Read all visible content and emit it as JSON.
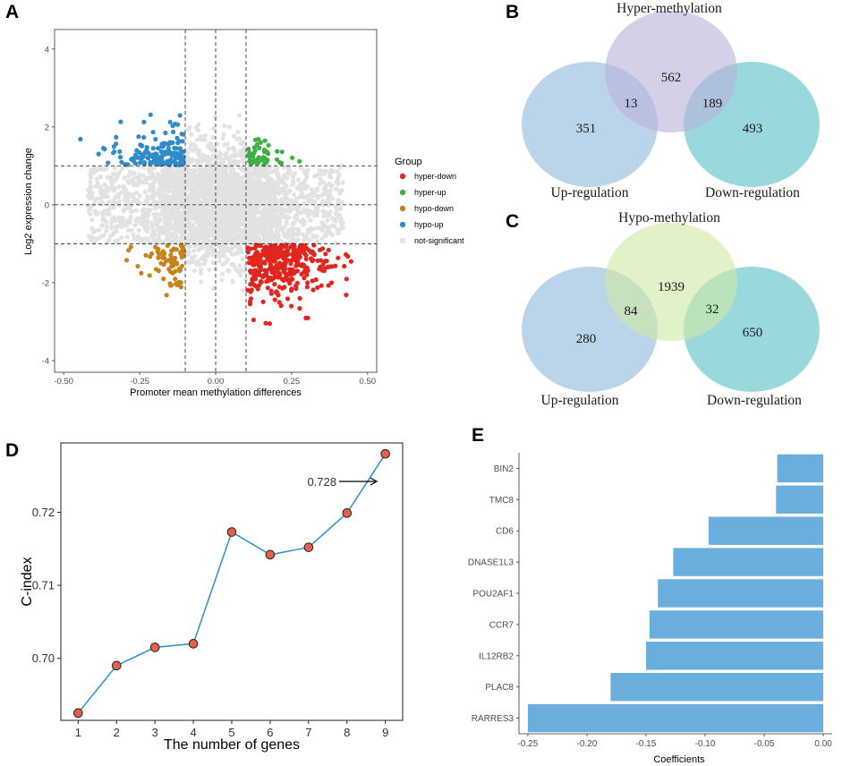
{
  "panels": {
    "a": "A",
    "b": "B",
    "c": "C",
    "d": "D",
    "e": "E"
  },
  "colors": {
    "hyper_down": "#e0261f",
    "hyper_up": "#3cb043",
    "hypo_down": "#c9821b",
    "hypo_up": "#2f8bc9",
    "not_significant": "#e2e2e2",
    "venn_hyper": "#b9b3d9",
    "venn_up": "#a9c9e3",
    "venn_down": "#7fd0d3",
    "venn_hypo": "#cfe8a6",
    "line": "#2c8fc7",
    "point": "#e4604a",
    "bar": "#6aaedd"
  },
  "chart_data": [
    {
      "id": "A",
      "type": "scatter",
      "xlabel": "Promoter mean methylation differences",
      "ylabel": "Log2 expression change",
      "xlim": [
        -0.53,
        0.53
      ],
      "ylim": [
        -4.3,
        4.5
      ],
      "xticks": [
        "-0.50",
        "-0.25",
        "0.00",
        "0.25",
        "0.50"
      ],
      "xtick_values": [
        -0.5,
        -0.25,
        0,
        0.25,
        0.5
      ],
      "yticks": [
        "-4",
        "-2",
        "0",
        "2",
        "4"
      ],
      "ytick_values": [
        -4,
        -2,
        0,
        2,
        4
      ],
      "vlines": [
        -0.1,
        0,
        0.1
      ],
      "hlines": [
        -1,
        0,
        1
      ],
      "legend": {
        "title": "Group",
        "entries": [
          "hyper-down",
          "hyper-up",
          "hypo-down",
          "hypo-up",
          "not-significant"
        ]
      },
      "groups": [
        {
          "name": "hyper-down",
          "rule": "x > 0.1 and y < -1",
          "count": 340
        },
        {
          "name": "hyper-up",
          "rule": "x > 0.1 and y > 1",
          "count": 45
        },
        {
          "name": "hypo-down",
          "rule": "x < -0.1 and y < -1",
          "count": 75
        },
        {
          "name": "hypo-up",
          "rule": "x < -0.1 and y > 1",
          "count": 160
        },
        {
          "name": "not-significant",
          "rule": "otherwise",
          "count": 3000
        }
      ]
    },
    {
      "id": "B",
      "type": "venn",
      "title": "Hyper-methylation",
      "sets": [
        "Hyper-methylation",
        "Up-regulation",
        "Down-regulation"
      ],
      "labels": {
        "left": "Up-regulation",
        "right": "Down-regulation"
      },
      "regions": {
        "top_only": "562",
        "left_only": "351",
        "right_only": "493",
        "top_left": "13",
        "top_right": "189"
      }
    },
    {
      "id": "C",
      "type": "venn",
      "title": "Hypo-methylation",
      "sets": [
        "Hypo-methylation",
        "Up-regulation",
        "Down-regulation"
      ],
      "labels": {
        "left": "Up-regulation",
        "right": "Down-regulation"
      },
      "regions": {
        "top_only": "1939",
        "left_only": "280",
        "right_only": "650",
        "top_left": "84",
        "top_right": "32"
      }
    },
    {
      "id": "D",
      "type": "line",
      "xlabel": "The number of genes",
      "ylabel": "C-index",
      "x": [
        1,
        2,
        3,
        4,
        5,
        6,
        7,
        8,
        9
      ],
      "values": [
        0.6925,
        0.699,
        0.7015,
        0.702,
        0.7173,
        0.7142,
        0.7152,
        0.7199,
        0.728
      ],
      "xlim": [
        0.55,
        9.45
      ],
      "ylim": [
        0.6915,
        0.7295
      ],
      "xticks": [
        "1",
        "2",
        "3",
        "4",
        "5",
        "6",
        "7",
        "8",
        "9"
      ],
      "yticks": [
        "0.70",
        "0.71",
        "0.72"
      ],
      "ytick_values": [
        0.7,
        0.71,
        0.72
      ],
      "annotation": "0.728"
    },
    {
      "id": "E",
      "type": "bar",
      "orientation": "horizontal",
      "xlabel": "Coefficients",
      "categories": [
        "BIN2",
        "TMC8",
        "CD6",
        "DNASE1L3",
        "POU2AF1",
        "CCR7",
        "IL12RB2",
        "PLAC8",
        "RARRES3"
      ],
      "values": [
        -0.039,
        -0.04,
        -0.097,
        -0.127,
        -0.14,
        -0.147,
        -0.15,
        -0.18,
        -0.25
      ],
      "xlim": [
        -0.2575,
        0.0075
      ],
      "xticks": [
        "-0.25",
        "-0.20",
        "-0.15",
        "-0.10",
        "-0.05",
        "0.00"
      ],
      "xtick_values": [
        -0.25,
        -0.2,
        -0.15,
        -0.1,
        -0.05,
        0
      ]
    }
  ]
}
